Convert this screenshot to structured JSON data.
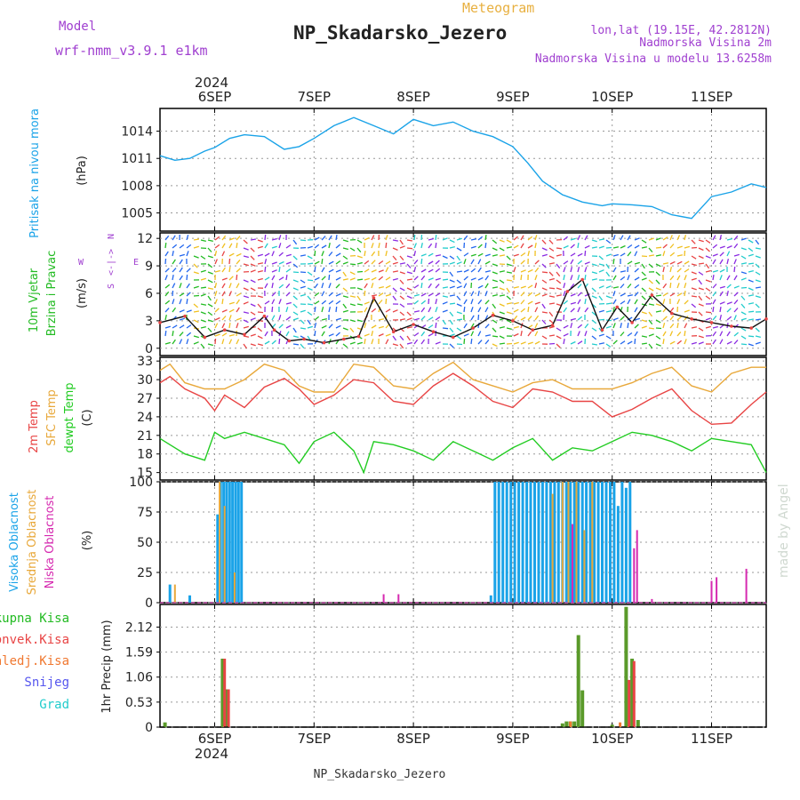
{
  "header": {
    "model_label": "Model",
    "model_name": "wrf-nmm_v3.9.1 e1km",
    "kind": "Meteogram",
    "station": "NP_Skadarsko_Jezero",
    "lonlat": "lon,lat (19.15E, 42.2812N)",
    "elevation": "Nadmorska Visina 2m",
    "model_elevation": "Nadmorska Visina u modelu 13.6258m",
    "credit": "made by Angel",
    "footer": "NP_Skadarsko_Jezero"
  },
  "colors": {
    "pressure": "#1aa3e8",
    "wind_label": "#22bb22",
    "t2m": "#e84444",
    "tsfc": "#e8a83a",
    "dewpt": "#22cc22",
    "high_cloud": "#1aa3e8",
    "mid_cloud": "#e8a83a",
    "low_cloud": "#d62ab0",
    "total_precip": "#5a9a2a",
    "conv_precip": "#e84444",
    "frozen_precip": "#f07830",
    "snow": "#5555ee",
    "hail": "#22cccc",
    "purple_text": "#a040d0",
    "kind_text": "#e8b040"
  },
  "x_axis": {
    "year_top": "2024",
    "year_bottom": "2024",
    "days": [
      "6SEP",
      "7SEP",
      "8SEP",
      "9SEP",
      "10SEP",
      "11SEP"
    ],
    "range_days": [
      -0.55,
      5.55
    ]
  },
  "compass": {
    "n": "N",
    "w": "W",
    "e": "E",
    "s": "S",
    "arrow": "<-|->"
  },
  "chart_data": [
    {
      "type": "line",
      "panel": "pressure",
      "title_lines": [
        "Pritisak na nivou mora",
        "(hPa)"
      ],
      "unit": "hPa",
      "ylim": [
        1003,
        1016.5
      ],
      "yticks": [
        "1005",
        "1008",
        "1011",
        "1014"
      ],
      "grid": true,
      "series": [
        {
          "x": [
            -0.55,
            -0.4,
            -0.25,
            -0.1,
            0,
            0.15,
            0.3,
            0.5,
            0.7,
            0.85,
            1,
            1.2,
            1.4,
            1.6,
            1.8,
            2,
            2.2,
            2.4,
            2.6,
            2.8,
            3,
            3.15,
            3.3,
            3.5,
            3.7,
            3.9,
            4,
            4.2,
            4.4,
            4.6,
            4.8,
            5,
            5.2,
            5.4,
            5.55
          ],
          "y": [
            1011.3,
            1010.8,
            1011.0,
            1011.8,
            1012.2,
            1013.2,
            1013.6,
            1013.4,
            1012.0,
            1012.3,
            1013.2,
            1014.6,
            1015.5,
            1014.6,
            1013.7,
            1015.3,
            1014.6,
            1015.0,
            1014.0,
            1013.4,
            1012.3,
            1010.5,
            1008.5,
            1007.0,
            1006.2,
            1005.8,
            1006.0,
            1005.9,
            1005.7,
            1004.8,
            1004.4,
            1006.8,
            1007.3,
            1008.2,
            1007.8
          ]
        }
      ]
    },
    {
      "type": "line",
      "panel": "wind",
      "title_lines": [
        "10m Vjetar",
        "Brzina i Pravac",
        "(m/s)"
      ],
      "unit": "m/s",
      "ylim": [
        -0.8,
        12.6
      ],
      "yticks": [
        "0",
        "3",
        "6",
        "9",
        "12"
      ],
      "grid": true,
      "series": [
        {
          "x": [
            -0.55,
            -0.3,
            -0.1,
            0.1,
            0.3,
            0.5,
            0.6,
            0.75,
            0.9,
            1.1,
            1.3,
            1.45,
            1.6,
            1.8,
            2,
            2.2,
            2.4,
            2.6,
            2.8,
            3,
            3.2,
            3.4,
            3.55,
            3.7,
            3.9,
            4.05,
            4.2,
            4.4,
            4.6,
            4.8,
            5,
            5.2,
            5.4,
            5.55
          ],
          "y": [
            2.8,
            3.5,
            1.2,
            2.0,
            1.5,
            3.5,
            2.0,
            0.8,
            1.0,
            0.6,
            1.0,
            1.3,
            5.5,
            1.8,
            2.6,
            1.8,
            1.2,
            2.2,
            3.6,
            3.0,
            2.0,
            2.5,
            6.2,
            7.5,
            2.0,
            4.5,
            2.8,
            5.8,
            3.8,
            3.2,
            2.8,
            2.4,
            2.2,
            3.2
          ]
        }
      ]
    },
    {
      "type": "line",
      "panel": "temperature",
      "title_lines": [
        "2m Temp",
        "SFC Temp",
        "dewpt Temp",
        "(C)"
      ],
      "unit": "C",
      "ylim": [
        13.8,
        33.6
      ],
      "yticks": [
        "15",
        "18",
        "21",
        "24",
        "27",
        "30",
        "33"
      ],
      "grid": true,
      "series": [
        {
          "name": "2m Temp",
          "x": [
            -0.55,
            -0.45,
            -0.3,
            -0.1,
            0,
            0.1,
            0.3,
            0.5,
            0.7,
            0.85,
            1,
            1.2,
            1.4,
            1.6,
            1.8,
            2,
            2.2,
            2.4,
            2.6,
            2.8,
            3,
            3.2,
            3.4,
            3.6,
            3.8,
            4,
            4.2,
            4.4,
            4.6,
            4.8,
            5,
            5.2,
            5.4,
            5.55
          ],
          "y": [
            29.5,
            30.5,
            28.5,
            27.0,
            25.0,
            27.5,
            25.5,
            28.8,
            30.2,
            28.5,
            26.0,
            27.5,
            30.0,
            29.5,
            26.5,
            26.0,
            29.0,
            31.0,
            29.0,
            26.5,
            25.5,
            28.5,
            28.0,
            26.5,
            26.5,
            24.0,
            25.2,
            27.0,
            28.5,
            25.0,
            22.8,
            23.0,
            26.0,
            28.0
          ]
        },
        {
          "name": "SFC Temp",
          "x": [
            -0.55,
            -0.45,
            -0.3,
            -0.1,
            0.1,
            0.3,
            0.5,
            0.7,
            0.85,
            1,
            1.2,
            1.4,
            1.6,
            1.8,
            2,
            2.2,
            2.4,
            2.6,
            2.8,
            3,
            3.2,
            3.4,
            3.6,
            3.8,
            4,
            4.2,
            4.4,
            4.6,
            4.8,
            5,
            5.2,
            5.4,
            5.55
          ],
          "y": [
            31.5,
            32.5,
            29.5,
            28.5,
            28.5,
            30.0,
            32.5,
            31.5,
            29.0,
            28.0,
            28.0,
            32.5,
            32.0,
            29.0,
            28.5,
            31.0,
            32.8,
            30.0,
            29.0,
            28.0,
            29.5,
            30.0,
            28.5,
            28.5,
            28.5,
            29.5,
            31.0,
            32.0,
            29.0,
            28.0,
            31.0,
            32.0,
            32.0
          ]
        },
        {
          "name": "dewpt Temp",
          "x": [
            -0.55,
            -0.45,
            -0.3,
            -0.1,
            0,
            0.1,
            0.3,
            0.5,
            0.7,
            0.85,
            1,
            1.2,
            1.4,
            1.5,
            1.6,
            1.8,
            2,
            2.2,
            2.4,
            2.6,
            2.8,
            3,
            3.2,
            3.4,
            3.6,
            3.8,
            4,
            4.2,
            4.4,
            4.6,
            4.8,
            5,
            5.2,
            5.4,
            5.55
          ],
          "y": [
            20.5,
            19.5,
            18.0,
            17.0,
            21.5,
            20.5,
            21.5,
            20.5,
            19.5,
            16.5,
            20.0,
            21.5,
            18.5,
            15.0,
            20.0,
            19.5,
            18.5,
            17.0,
            20.0,
            18.5,
            17.0,
            19.0,
            20.5,
            17.0,
            19.0,
            18.5,
            20.0,
            21.5,
            21.0,
            20.0,
            18.5,
            20.5,
            20.0,
            19.5,
            15.0
          ]
        }
      ]
    },
    {
      "type": "bar",
      "panel": "cloud",
      "title_lines": [
        "Visoka Oblacnost",
        "Srednja Oblacnost",
        "Niska Oblacnost",
        "(%)"
      ],
      "unit": "%",
      "ylim": [
        0,
        100
      ],
      "yticks": [
        "0",
        "25",
        "50",
        "75",
        "100"
      ],
      "grid": true,
      "series": [
        {
          "name": "Visoka Oblacnost",
          "x": [
            -0.45,
            -0.25,
            0.03,
            0.06,
            0.09,
            0.12,
            0.15,
            0.18,
            0.21,
            0.24,
            0.27,
            2.78,
            2.82,
            2.86,
            2.9,
            2.94,
            2.98,
            3.02,
            3.06,
            3.1,
            3.14,
            3.18,
            3.22,
            3.26,
            3.3,
            3.34,
            3.38,
            3.42,
            3.46,
            3.5,
            3.54,
            3.58,
            3.62,
            3.66,
            3.7,
            3.74,
            3.78,
            3.82,
            3.86,
            3.9,
            3.94,
            3.98,
            4.02,
            4.06,
            4.1,
            4.14,
            4.18
          ],
          "y": [
            15,
            6,
            73,
            100,
            100,
            100,
            100,
            100,
            100,
            100,
            100,
            6,
            100,
            100,
            100,
            100,
            100,
            100,
            100,
            100,
            100,
            100,
            100,
            100,
            100,
            100,
            100,
            100,
            100,
            100,
            100,
            100,
            100,
            100,
            100,
            100,
            100,
            100,
            100,
            100,
            100,
            100,
            100,
            80,
            100,
            95,
            100
          ]
        },
        {
          "name": "Srednja Oblacnost",
          "x": [
            -0.4,
            0.05,
            0.1,
            0.2,
            3.4,
            3.5,
            3.56,
            3.64,
            3.72,
            3.8
          ],
          "y": [
            15,
            100,
            80,
            25,
            90,
            100,
            100,
            100,
            60,
            100
          ]
        },
        {
          "name": "Niska Oblacnost",
          "x": [
            1.7,
            1.85,
            3.6,
            4.22,
            4.25,
            4.4,
            5.0,
            5.05,
            5.35
          ],
          "y": [
            7,
            7,
            65,
            45,
            60,
            3,
            18,
            21,
            28
          ]
        }
      ]
    },
    {
      "type": "bar",
      "panel": "precip",
      "title_lines": [
        "Ukupna Kisa",
        "Konvek.Kisa",
        "Zaledj.Kisa",
        "Snijeg",
        "Grad",
        "1hr Precip (mm)"
      ],
      "unit": "mm",
      "ylim": [
        0,
        2.6
      ],
      "yticks": [
        "0",
        "0.53",
        "1.06",
        "1.59",
        "2.12"
      ],
      "grid": true,
      "series": [
        {
          "name": "Ukupna Kisa",
          "x": [
            -0.5,
            0.08,
            0.12,
            3.5,
            3.54,
            3.58,
            3.62,
            3.66,
            3.7,
            4.0,
            4.14,
            4.2,
            4.26
          ],
          "y": [
            0.1,
            1.45,
            0.8,
            0.08,
            0.12,
            0.12,
            0.12,
            1.95,
            0.78,
            0.05,
            2.55,
            1.45,
            0.15
          ]
        },
        {
          "name": "Konvek.Kisa",
          "x": [
            0.1,
            0.14,
            4.17,
            4.22
          ],
          "y": [
            1.45,
            0.8,
            1.0,
            1.4
          ]
        },
        {
          "name": "Zaledj.Kisa",
          "x": [
            3.58,
            4.08
          ],
          "y": [
            0.12,
            0.1
          ]
        },
        {
          "name": "Snijeg",
          "x": [],
          "y": []
        },
        {
          "name": "Grad",
          "x": [],
          "y": []
        }
      ]
    }
  ]
}
